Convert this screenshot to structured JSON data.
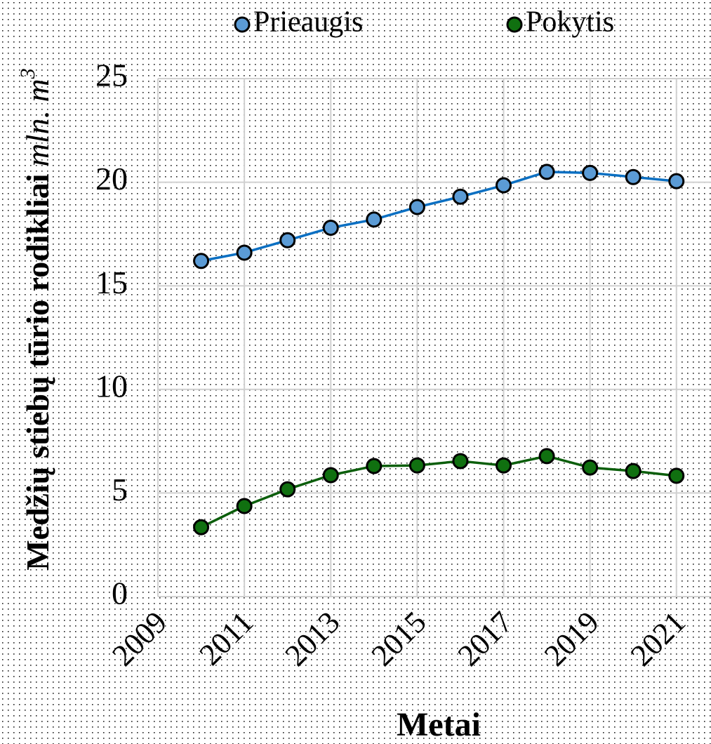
{
  "chart_data": {
    "type": "line",
    "x_label": "Metai",
    "y_label": "Medžių stiebų tūrio rodikliai",
    "y_unit": "mln. m",
    "y_unit_sup": "3",
    "x": [
      2010,
      2011,
      2012,
      2013,
      2014,
      2015,
      2016,
      2017,
      2018,
      2019,
      2020,
      2021
    ],
    "series": [
      {
        "name": "Prieaugis",
        "color": "#0a6fc2",
        "marker_color": "#5b9bd5",
        "values": [
          16.2,
          16.6,
          17.2,
          17.8,
          18.2,
          18.8,
          19.3,
          19.85,
          20.5,
          20.45,
          20.25,
          20.05
        ]
      },
      {
        "name": "Pokytis",
        "color": "#0b5e0b",
        "marker_color": "#107010",
        "values": [
          3.35,
          4.37,
          5.18,
          5.86,
          6.3,
          6.33,
          6.54,
          6.33,
          6.78,
          6.23,
          6.06,
          5.83
        ]
      }
    ],
    "xlim": [
      2009,
      2021.8
    ],
    "xticks": [
      2009,
      2011,
      2013,
      2015,
      2017,
      2019,
      2021
    ],
    "ylim": [
      0,
      25
    ],
    "yticks": [
      0,
      5,
      10,
      15,
      20,
      25
    ],
    "grid": true,
    "legend": "top"
  }
}
